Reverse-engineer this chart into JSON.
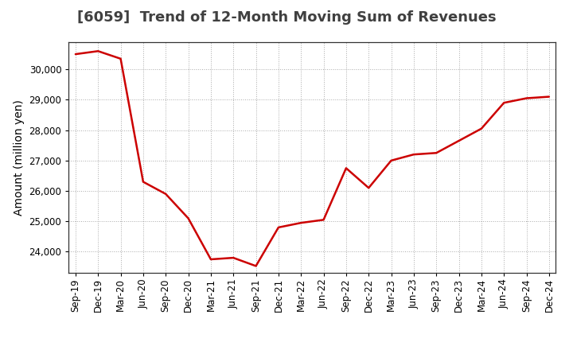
{
  "title": "[6059]  Trend of 12-Month Moving Sum of Revenues",
  "ylabel": "Amount (million yen)",
  "background_color": "#ffffff",
  "plot_bg_color": "#ffffff",
  "grid_color": "#aaaaaa",
  "line_color": "#cc0000",
  "x_labels": [
    "Sep-19",
    "Dec-19",
    "Mar-20",
    "Jun-20",
    "Sep-20",
    "Dec-20",
    "Mar-21",
    "Jun-21",
    "Sep-21",
    "Dec-21",
    "Mar-22",
    "Jun-22",
    "Sep-22",
    "Dec-22",
    "Mar-23",
    "Jun-23",
    "Sep-23",
    "Dec-23",
    "Mar-24",
    "Jun-24",
    "Sep-24",
    "Dec-24"
  ],
  "values": [
    30500,
    30600,
    30350,
    26300,
    25900,
    25100,
    23750,
    23800,
    23530,
    24800,
    24950,
    25050,
    26750,
    26100,
    27000,
    27200,
    27250,
    27650,
    28050,
    28900,
    29050,
    29100
  ],
  "ylim_min": 23300,
  "ylim_max": 30900,
  "yticks": [
    24000,
    25000,
    26000,
    27000,
    28000,
    29000,
    30000
  ],
  "title_fontsize": 13,
  "title_color": "#404040",
  "ylabel_fontsize": 10,
  "tick_fontsize": 8.5,
  "line_width": 1.8
}
